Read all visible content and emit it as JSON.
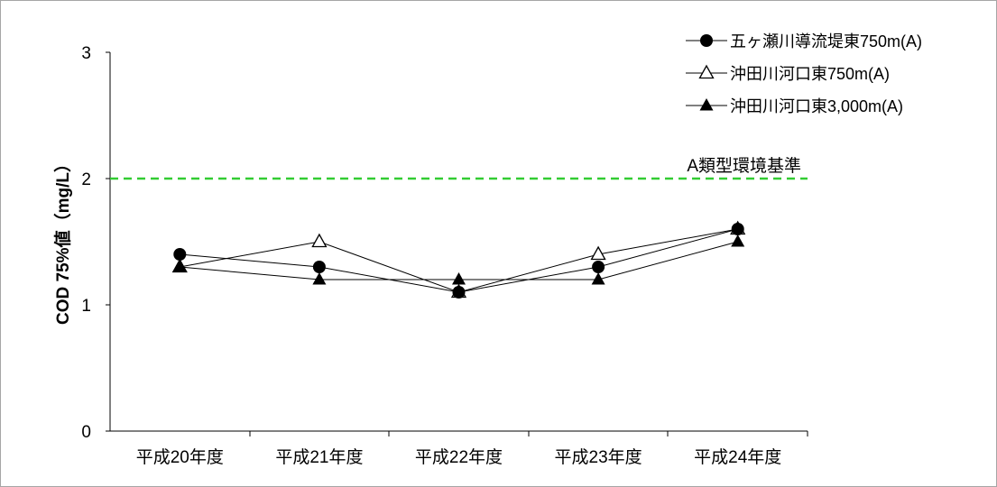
{
  "chart_data": {
    "type": "line",
    "ylabel": "COD 75%値（mg/L）",
    "categories": [
      "平成20年度",
      "平成21年度",
      "平成22年度",
      "平成23年度",
      "平成24年度"
    ],
    "ylim": [
      0,
      3
    ],
    "yticks": [
      0,
      1,
      2,
      3
    ],
    "grid": false,
    "legend_position": "top-right",
    "series": [
      {
        "name": "五ヶ瀬川導流堤東750m(A)",
        "marker": "filled-circle",
        "color": "#000000",
        "values": [
          1.4,
          1.3,
          1.1,
          1.3,
          1.6
        ]
      },
      {
        "name": "沖田川河口東750m(A)",
        "marker": "open-triangle",
        "color": "#000000",
        "values": [
          1.3,
          1.5,
          1.1,
          1.4,
          1.6
        ]
      },
      {
        "name": "沖田川河口東3,000m(A)",
        "marker": "filled-triangle",
        "color": "#000000",
        "values": [
          1.3,
          1.2,
          1.2,
          1.2,
          1.5
        ]
      }
    ],
    "reference_lines": [
      {
        "label": "A類型環境基準",
        "value": 2,
        "color": "#33cc33",
        "style": "dashed"
      }
    ]
  }
}
